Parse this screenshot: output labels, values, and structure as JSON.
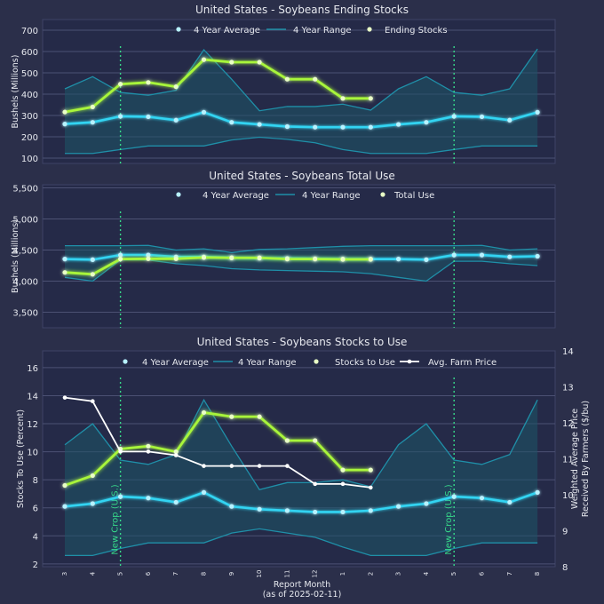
{
  "colors": {
    "background": "#2b2f4a",
    "panel": "#252a48",
    "grid": "#4c5173",
    "text": "#e6e8ee",
    "avg": "#33d4f2",
    "range": "#1f8fa8",
    "range_fill": "#1d5668",
    "green": "#a8f53a",
    "price": "#ffffff",
    "new_crop": "#37d98a"
  },
  "x_axis": {
    "tick_labels": [
      "3",
      "4",
      "5",
      "6",
      "7",
      "8",
      "9",
      "10",
      "11",
      "12",
      "1",
      "2",
      "3",
      "4",
      "5",
      "6",
      "7",
      "8"
    ],
    "label_line1": "Report Month",
    "label_line2": "(as of 2025-02-11)"
  },
  "new_crop_label": "New Crop (U.S.)",
  "new_crop_indices": [
    2,
    14
  ],
  "chart_data": [
    {
      "type": "line",
      "title": "United States - Soybeans Ending Stocks",
      "ylabel": "Bushels (Millions)",
      "ylim": [
        75,
        750
      ],
      "yticks": [
        100,
        200,
        300,
        400,
        500,
        600,
        700
      ],
      "ytick_labels": [
        "100",
        "200",
        "300",
        "400",
        "500",
        "600",
        "700"
      ],
      "legend": [
        "4 Year Average",
        "4 Year Range",
        "Ending Stocks"
      ],
      "series": [
        {
          "name": "4 Year Average",
          "role": "avg",
          "values": [
            260,
            268,
            296,
            294,
            278,
            315,
            268,
            258,
            248,
            245,
            245,
            245,
            258,
            268,
            296,
            294,
            278,
            315
          ]
        },
        {
          "name": "4 Year Range Upper",
          "role": "range_hi",
          "values": [
            425,
            482,
            408,
            395,
            418,
            608,
            470,
            322,
            342,
            342,
            353,
            325,
            425,
            482,
            408,
            395,
            425,
            612
          ]
        },
        {
          "name": "4 Year Range Lower",
          "role": "range_lo",
          "values": [
            122,
            122,
            140,
            157,
            157,
            157,
            185,
            198,
            188,
            172,
            140,
            122,
            122,
            122,
            140,
            157,
            157,
            157
          ]
        },
        {
          "name": "Ending Stocks",
          "role": "main",
          "values": [
            316,
            340,
            447,
            455,
            435,
            562,
            550,
            550,
            470,
            470,
            380,
            380
          ]
        }
      ]
    },
    {
      "type": "line",
      "title": "United States - Soybeans Total Use",
      "ylabel": "Bushels (Millions)",
      "ylim": [
        3250,
        5550
      ],
      "yticks": [
        3500,
        4000,
        4500,
        5000,
        5500
      ],
      "ytick_labels": [
        "3,500",
        "4,000",
        "4,500",
        "5,000",
        "5,500"
      ],
      "legend": [
        "4 Year Average",
        "4 Year Range",
        "Total Use"
      ],
      "series": [
        {
          "name": "4 Year Average",
          "role": "avg",
          "values": [
            4355,
            4345,
            4420,
            4420,
            4390,
            4390,
            4375,
            4370,
            4365,
            4360,
            4355,
            4355,
            4355,
            4345,
            4420,
            4420,
            4390,
            4400
          ]
        },
        {
          "name": "4 Year Range Upper",
          "role": "range_hi",
          "values": [
            4570,
            4570,
            4570,
            4575,
            4500,
            4520,
            4460,
            4510,
            4520,
            4540,
            4560,
            4570,
            4570,
            4570,
            4570,
            4575,
            4500,
            4520
          ]
        },
        {
          "name": "4 Year Range Lower",
          "role": "range_lo",
          "values": [
            4060,
            4000,
            4340,
            4340,
            4280,
            4250,
            4200,
            4180,
            4170,
            4160,
            4150,
            4120,
            4060,
            4000,
            4320,
            4320,
            4280,
            4250
          ]
        },
        {
          "name": "Total Use",
          "role": "main",
          "values": [
            4140,
            4110,
            4355,
            4360,
            4360,
            4380,
            4375,
            4375,
            4355,
            4355,
            4350,
            4350
          ]
        }
      ]
    },
    {
      "type": "line",
      "title": "United States - Soybeans Stocks to Use",
      "ylabel": "Stocks To Use (Percent)",
      "y2label_line1": "Weighted Average Price",
      "y2label_line2": "Received By Farmers ($/bu)",
      "ylim": [
        1.8,
        17.2
      ],
      "yticks": [
        2,
        4,
        6,
        8,
        10,
        12,
        14,
        16
      ],
      "ytick_labels": [
        "2",
        "4",
        "6",
        "8",
        "10",
        "12",
        "14",
        "16"
      ],
      "y2lim": [
        8,
        14
      ],
      "y2ticks": [
        8,
        9,
        10,
        11,
        12,
        13,
        14
      ],
      "y2tick_labels": [
        "8",
        "9",
        "10",
        "11",
        "12",
        "13",
        "14"
      ],
      "legend": [
        "4 Year Average",
        "4 Year Range",
        "Stocks to Use",
        "Avg. Farm Price"
      ],
      "series": [
        {
          "name": "4 Year Average",
          "role": "avg",
          "values": [
            6.1,
            6.3,
            6.8,
            6.7,
            6.4,
            7.1,
            6.1,
            5.9,
            5.8,
            5.7,
            5.7,
            5.8,
            6.1,
            6.3,
            6.8,
            6.7,
            6.4,
            7.1
          ]
        },
        {
          "name": "4 Year Range Upper",
          "role": "range_hi",
          "values": [
            10.5,
            12.0,
            9.4,
            9.1,
            9.8,
            13.7,
            10.4,
            7.3,
            7.8,
            7.8,
            8.0,
            7.5,
            10.5,
            12.0,
            9.4,
            9.1,
            9.8,
            13.7
          ]
        },
        {
          "name": "4 Year Range Lower",
          "role": "range_lo",
          "values": [
            2.6,
            2.6,
            3.1,
            3.5,
            3.5,
            3.5,
            4.2,
            4.5,
            4.2,
            3.9,
            3.2,
            2.6,
            2.6,
            2.6,
            3.1,
            3.5,
            3.5,
            3.5
          ]
        },
        {
          "name": "Stocks to Use",
          "role": "main",
          "values": [
            7.6,
            8.3,
            10.2,
            10.4,
            10.0,
            12.8,
            12.5,
            12.5,
            10.8,
            10.8,
            8.7,
            8.7
          ]
        },
        {
          "name": "Avg. Farm Price",
          "role": "price",
          "axis": "right",
          "values": [
            12.7,
            12.6,
            11.2,
            11.2,
            11.1,
            10.8,
            10.8,
            10.8,
            10.8,
            10.3,
            10.3,
            10.2
          ]
        }
      ]
    }
  ]
}
